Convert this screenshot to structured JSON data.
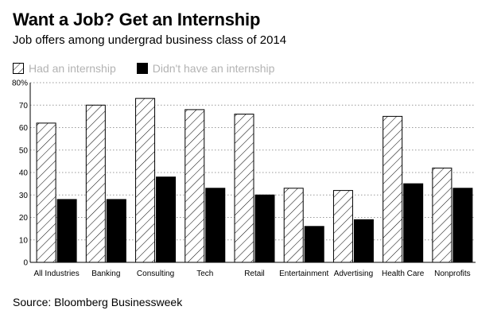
{
  "header": {
    "title": "Want a Job? Get an Internship",
    "subtitle": "Job offers among undergrad business class of 2014"
  },
  "footer": {
    "source": "Source: Bloomberg Businessweek"
  },
  "colors": {
    "hatched_bar": "#ffffff",
    "solid_bar": "#000000",
    "legend_text": "#b3b3b3",
    "grid": "#999999"
  },
  "chart_data": {
    "type": "bar",
    "title": "",
    "xlabel": "",
    "ylabel": "",
    "ylim": [
      0,
      80
    ],
    "yticks": [
      "0",
      "10",
      "20",
      "30",
      "40",
      "50",
      "60",
      "70",
      "80%"
    ],
    "grid": "horizontal-dotted",
    "legend_placement": "top-left",
    "categories": [
      "All Industries",
      "Banking",
      "Consulting",
      "Tech",
      "Retail",
      "Entertainment",
      "Advertising",
      "Health Care",
      "Nonprofits"
    ],
    "series": [
      {
        "name": "Had an internship",
        "style": "hatched",
        "values": [
          62,
          70,
          73,
          68,
          66,
          33,
          32,
          65,
          42
        ]
      },
      {
        "name": "Didn't have an internship",
        "style": "solid",
        "values": [
          28,
          28,
          38,
          33,
          30,
          16,
          19,
          35,
          33
        ]
      }
    ]
  }
}
